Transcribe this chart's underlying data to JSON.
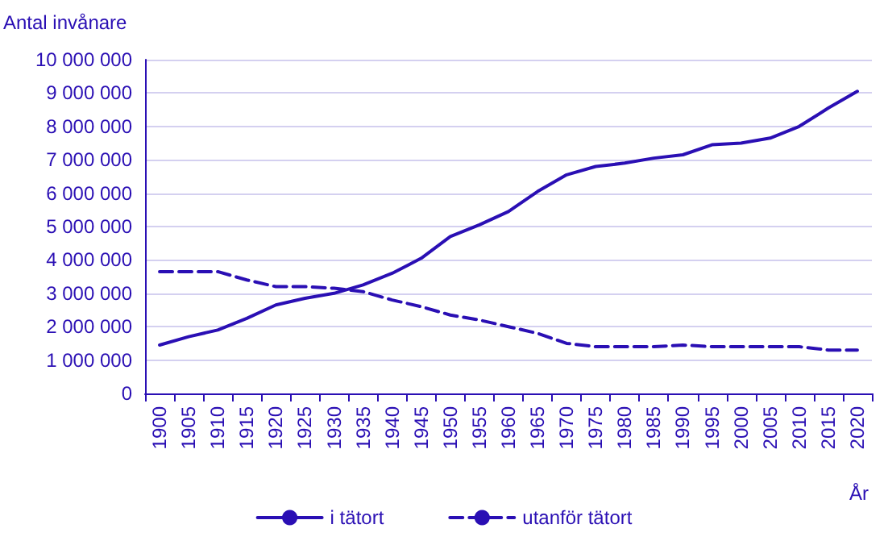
{
  "chart_data": {
    "type": "line",
    "ylabel": "Antal invånare",
    "xlabel": "År",
    "categories": [
      "1900",
      "1905",
      "1910",
      "1915",
      "1920",
      "1925",
      "1930",
      "1935",
      "1940",
      "1945",
      "1950",
      "1955",
      "1960",
      "1965",
      "1970",
      "1975",
      "1980",
      "1985",
      "1990",
      "1995",
      "2000",
      "2005",
      "2010",
      "2015",
      "2020"
    ],
    "series": [
      {
        "name": "i tätort",
        "color": "#2a0fb4",
        "line_style": "solid",
        "values": [
          1450000,
          1700000,
          1900000,
          2250000,
          2650000,
          2850000,
          3000000,
          3250000,
          3600000,
          4050000,
          4700000,
          5050000,
          5450000,
          6050000,
          6550000,
          6800000,
          6900000,
          7050000,
          7150000,
          7450000,
          7500000,
          7650000,
          8000000,
          8550000,
          9050000
        ]
      },
      {
        "name": "utanför tätort",
        "color": "#2a0fb4",
        "line_style": "dashed",
        "values": [
          3650000,
          3650000,
          3650000,
          3400000,
          3200000,
          3200000,
          3150000,
          3050000,
          2800000,
          2600000,
          2350000,
          2200000,
          2000000,
          1800000,
          1500000,
          1400000,
          1400000,
          1400000,
          1450000,
          1400000,
          1400000,
          1400000,
          1400000,
          1300000,
          1300000
        ]
      }
    ],
    "ylim": [
      0,
      10000000
    ],
    "yticks": [
      0,
      1000000,
      2000000,
      3000000,
      4000000,
      5000000,
      6000000,
      7000000,
      8000000,
      9000000,
      10000000
    ],
    "grid": "y",
    "legend": "bottom",
    "marker": "none"
  }
}
